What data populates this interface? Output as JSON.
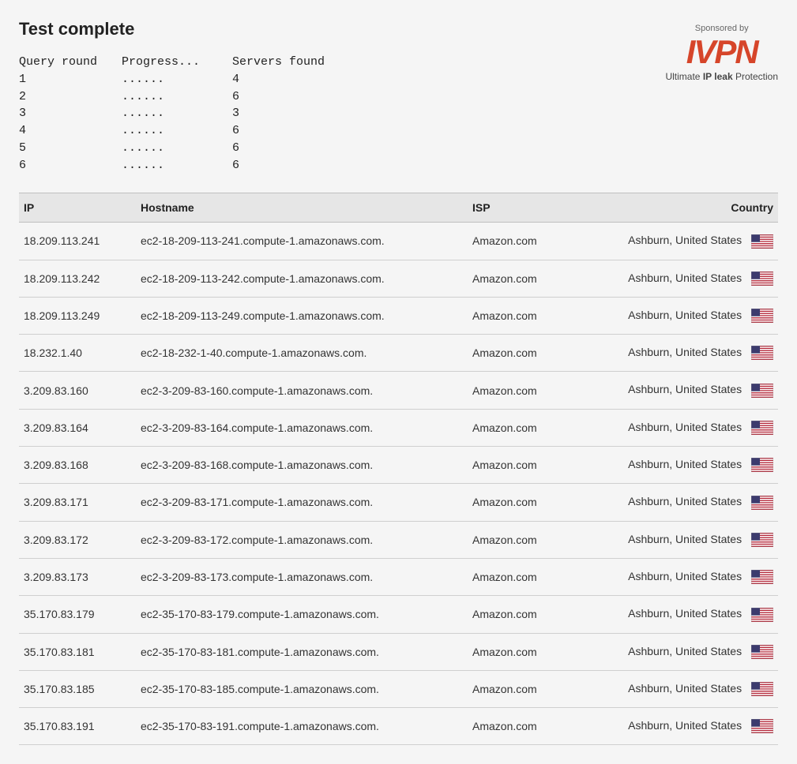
{
  "title": "Test complete",
  "query": {
    "headers": {
      "round": "Query round",
      "progress": "Progress...",
      "servers": "Servers found"
    },
    "rows": [
      {
        "round": "1",
        "progress": "......",
        "servers": "4"
      },
      {
        "round": "2",
        "progress": "......",
        "servers": "6"
      },
      {
        "round": "3",
        "progress": "......",
        "servers": "3"
      },
      {
        "round": "4",
        "progress": "......",
        "servers": "6"
      },
      {
        "round": "5",
        "progress": "......",
        "servers": "6"
      },
      {
        "round": "6",
        "progress": "......",
        "servers": "6"
      }
    ]
  },
  "sponsor": {
    "sponsored_by": "Sponsored by",
    "logo_text": "IVPN",
    "tagline_pre": "Ultimate ",
    "tagline_bold": "IP leak",
    "tagline_post": " Protection",
    "logo_color": "#d6452a"
  },
  "table": {
    "headers": {
      "ip": "IP",
      "hostname": "Hostname",
      "isp": "ISP",
      "country": "Country"
    },
    "header_bg": "#e6e6e6",
    "border_color": "#cfcfcf",
    "rows": [
      {
        "ip": "18.209.113.241",
        "hostname": "ec2-18-209-113-241.compute-1.amazonaws.com.",
        "isp": "Amazon.com",
        "country": "Ashburn, United States",
        "flag": "us"
      },
      {
        "ip": "18.209.113.242",
        "hostname": "ec2-18-209-113-242.compute-1.amazonaws.com.",
        "isp": "Amazon.com",
        "country": "Ashburn, United States",
        "flag": "us"
      },
      {
        "ip": "18.209.113.249",
        "hostname": "ec2-18-209-113-249.compute-1.amazonaws.com.",
        "isp": "Amazon.com",
        "country": "Ashburn, United States",
        "flag": "us"
      },
      {
        "ip": "18.232.1.40",
        "hostname": "ec2-18-232-1-40.compute-1.amazonaws.com.",
        "isp": "Amazon.com",
        "country": "Ashburn, United States",
        "flag": "us"
      },
      {
        "ip": "3.209.83.160",
        "hostname": "ec2-3-209-83-160.compute-1.amazonaws.com.",
        "isp": "Amazon.com",
        "country": "Ashburn, United States",
        "flag": "us"
      },
      {
        "ip": "3.209.83.164",
        "hostname": "ec2-3-209-83-164.compute-1.amazonaws.com.",
        "isp": "Amazon.com",
        "country": "Ashburn, United States",
        "flag": "us"
      },
      {
        "ip": "3.209.83.168",
        "hostname": "ec2-3-209-83-168.compute-1.amazonaws.com.",
        "isp": "Amazon.com",
        "country": "Ashburn, United States",
        "flag": "us"
      },
      {
        "ip": "3.209.83.171",
        "hostname": "ec2-3-209-83-171.compute-1.amazonaws.com.",
        "isp": "Amazon.com",
        "country": "Ashburn, United States",
        "flag": "us"
      },
      {
        "ip": "3.209.83.172",
        "hostname": "ec2-3-209-83-172.compute-1.amazonaws.com.",
        "isp": "Amazon.com",
        "country": "Ashburn, United States",
        "flag": "us"
      },
      {
        "ip": "3.209.83.173",
        "hostname": "ec2-3-209-83-173.compute-1.amazonaws.com.",
        "isp": "Amazon.com",
        "country": "Ashburn, United States",
        "flag": "us"
      },
      {
        "ip": "35.170.83.179",
        "hostname": "ec2-35-170-83-179.compute-1.amazonaws.com.",
        "isp": "Amazon.com",
        "country": "Ashburn, United States",
        "flag": "us"
      },
      {
        "ip": "35.170.83.181",
        "hostname": "ec2-35-170-83-181.compute-1.amazonaws.com.",
        "isp": "Amazon.com",
        "country": "Ashburn, United States",
        "flag": "us"
      },
      {
        "ip": "35.170.83.185",
        "hostname": "ec2-35-170-83-185.compute-1.amazonaws.com.",
        "isp": "Amazon.com",
        "country": "Ashburn, United States",
        "flag": "us"
      },
      {
        "ip": "35.170.83.191",
        "hostname": "ec2-35-170-83-191.compute-1.amazonaws.com.",
        "isp": "Amazon.com",
        "country": "Ashburn, United States",
        "flag": "us"
      }
    ]
  },
  "flag_colors": {
    "us_red": "#b22234",
    "us_blue": "#3c3b6e",
    "us_white": "#ffffff"
  }
}
